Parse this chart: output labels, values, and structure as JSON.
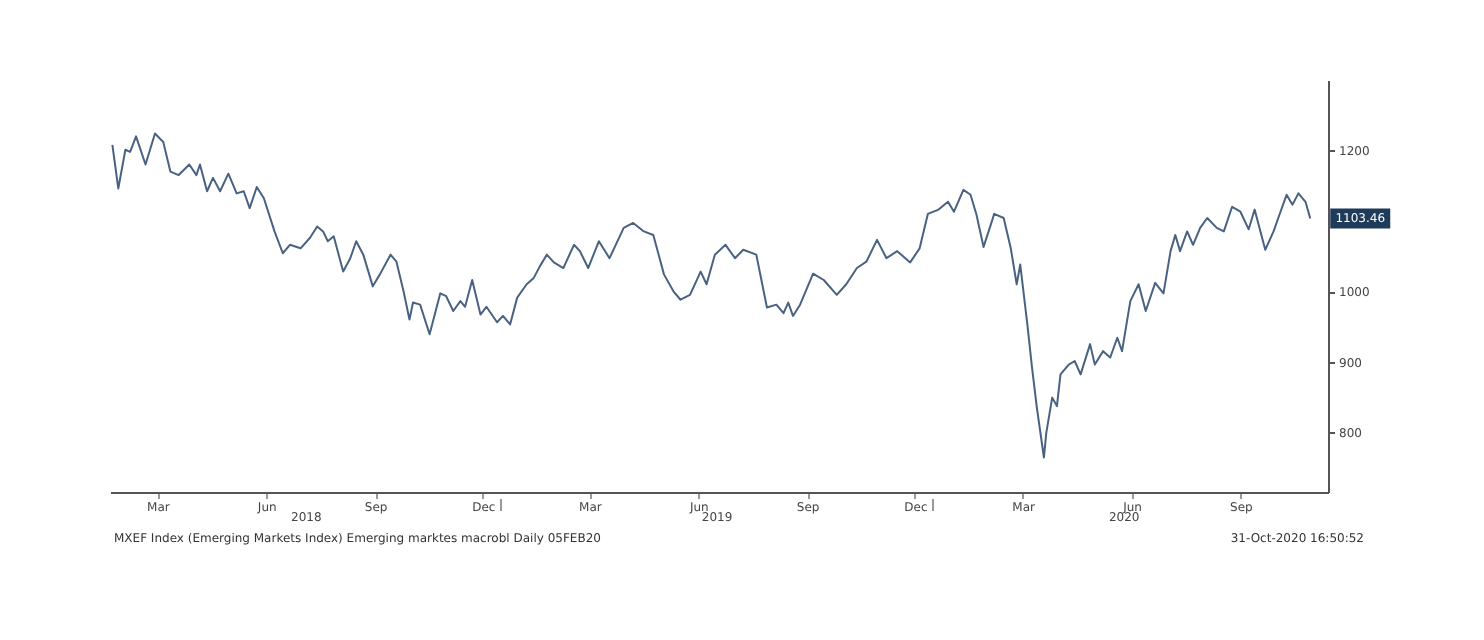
{
  "chart_data": {
    "type": "line",
    "x": [
      "2018-01-22",
      "2018-01-27",
      "2018-02-02",
      "2018-02-06",
      "2018-02-11",
      "2018-02-19",
      "2018-02-27",
      "2018-03-06",
      "2018-03-12",
      "2018-03-19",
      "2018-03-28",
      "2018-04-03",
      "2018-04-06",
      "2018-04-12",
      "2018-04-17",
      "2018-04-23",
      "2018-04-30",
      "2018-05-07",
      "2018-05-13",
      "2018-05-18",
      "2018-05-24",
      "2018-05-30",
      "2018-06-08",
      "2018-06-15",
      "2018-06-21",
      "2018-06-30",
      "2018-07-08",
      "2018-07-14",
      "2018-07-19",
      "2018-07-23",
      "2018-07-28",
      "2018-08-05",
      "2018-08-11",
      "2018-08-16",
      "2018-08-22",
      "2018-08-30",
      "2018-09-05",
      "2018-09-14",
      "2018-09-19",
      "2018-09-25",
      "2018-09-30",
      "2018-10-03",
      "2018-10-09",
      "2018-10-17",
      "2018-10-26",
      "2018-10-31",
      "2018-11-06",
      "2018-11-12",
      "2018-11-16",
      "2018-11-22",
      "2018-11-29",
      "2018-12-04",
      "2018-12-13",
      "2018-12-18",
      "2018-12-24",
      "2018-12-30",
      "2019-01-07",
      "2019-01-13",
      "2019-01-18",
      "2019-01-24",
      "2019-01-30",
      "2019-02-07",
      "2019-02-16",
      "2019-02-21",
      "2019-02-28",
      "2019-03-09",
      "2019-03-18",
      "2019-03-30",
      "2019-04-07",
      "2019-04-16",
      "2019-04-24",
      "2019-05-03",
      "2019-05-11",
      "2019-05-17",
      "2019-05-25",
      "2019-06-03",
      "2019-06-08",
      "2019-06-15",
      "2019-06-24",
      "2019-07-02",
      "2019-07-09",
      "2019-07-20",
      "2019-07-29",
      "2019-08-06",
      "2019-08-12",
      "2019-08-16",
      "2019-08-20",
      "2019-08-26",
      "2019-09-06",
      "2019-09-15",
      "2019-09-26",
      "2019-10-04",
      "2019-10-13",
      "2019-10-21",
      "2019-10-30",
      "2019-11-07",
      "2019-11-16",
      "2019-11-27",
      "2019-12-05",
      "2019-12-12",
      "2019-12-21",
      "2019-12-29",
      "2020-01-03",
      "2020-01-11",
      "2020-01-17",
      "2020-01-22",
      "2020-01-28",
      "2020-02-03",
      "2020-02-06",
      "2020-02-14",
      "2020-02-20",
      "2020-02-25",
      "2020-02-28",
      "2020-03-05",
      "2020-03-09",
      "2020-03-13",
      "2020-03-19",
      "2020-03-21",
      "2020-03-26",
      "2020-03-30",
      "2020-04-02",
      "2020-04-09",
      "2020-04-14",
      "2020-04-19",
      "2020-04-27",
      "2020-05-01",
      "2020-05-08",
      "2020-05-14",
      "2020-05-20",
      "2020-05-24",
      "2020-05-31",
      "2020-06-07",
      "2020-06-13",
      "2020-06-21",
      "2020-06-28",
      "2020-07-04",
      "2020-07-08",
      "2020-07-12",
      "2020-07-18",
      "2020-07-23",
      "2020-07-29",
      "2020-08-04",
      "2020-08-12",
      "2020-08-18",
      "2020-08-25",
      "2020-09-01",
      "2020-09-08",
      "2020-09-13",
      "2020-09-22",
      "2020-09-29",
      "2020-10-03",
      "2020-10-10",
      "2020-10-15",
      "2020-10-20",
      "2020-10-26",
      "2020-10-30"
    ],
    "series": [
      {
        "color": "#4a6281",
        "values": [
          1208,
          1146,
          1201,
          1198,
          1220,
          1180,
          1224,
          1212,
          1170,
          1165,
          1180,
          1165,
          1180,
          1142,
          1161,
          1142,
          1167,
          1139,
          1142,
          1118,
          1148,
          1132,
          1085,
          1054,
          1066,
          1061,
          1076,
          1092,
          1085,
          1071,
          1078,
          1028,
          1047,
          1071,
          1052,
          1007,
          1024,
          1052,
          1042,
          1000,
          960,
          984,
          981,
          939,
          997,
          993,
          972,
          986,
          978,
          1016,
          967,
          978,
          956,
          965,
          953,
          991,
          1010,
          1019,
          1035,
          1052,
          1041,
          1033,
          1066,
          1057,
          1033,
          1071,
          1047,
          1090,
          1097,
          1085,
          1080,
          1024,
          1000,
          988,
          995,
          1028,
          1010,
          1052,
          1066,
          1047,
          1059,
          1052,
          977,
          981,
          969,
          984,
          965,
          981,
          1025,
          1016,
          995,
          1010,
          1033,
          1042,
          1073,
          1047,
          1057,
          1041,
          1061,
          1110,
          1116,
          1127,
          1113,
          1144,
          1137,
          1109,
          1063,
          1094,
          1110,
          1104,
          1061,
          1010,
          1038,
          953,
          891,
          835,
          764,
          799,
          849,
          837,
          882,
          896,
          901,
          882,
          925,
          896,
          915,
          906,
          934,
          915,
          986,
          1010,
          972,
          1012,
          997,
          1057,
          1080,
          1057,
          1085,
          1066,
          1090,
          1104,
          1090,
          1085,
          1120,
          1113,
          1088,
          1116,
          1059,
          1085,
          1104,
          1137,
          1123,
          1139,
          1127,
          1103.46
        ]
      }
    ],
    "xlim": [
      "2018-01-20",
      "2020-11-14"
    ],
    "xticks": [
      {
        "value": "2018-03-01",
        "label": "Mar"
      },
      {
        "value": "2018-06-01",
        "label": "Jun"
      },
      {
        "value": "2018-09-01",
        "label": "Sep"
      },
      {
        "value": "2018-12-01",
        "label": "Dec"
      },
      {
        "value": "2019-03-01",
        "label": "Mar"
      },
      {
        "value": "2019-06-01",
        "label": "Jun"
      },
      {
        "value": "2019-09-01",
        "label": "Sep"
      },
      {
        "value": "2019-12-01",
        "label": "Dec"
      },
      {
        "value": "2020-03-01",
        "label": "Mar"
      },
      {
        "value": "2020-06-01",
        "label": "Jun"
      },
      {
        "value": "2020-09-01",
        "label": "Sep"
      }
    ],
    "x2lim": [
      "2018-01-20",
      "2020-11-14"
    ],
    "x2ticks": [
      {
        "value": "2018-07-04",
        "label": "2018"
      },
      {
        "value": "2019-06-16",
        "label": "2019"
      },
      {
        "value": "2020-05-25",
        "label": "2020"
      },
      {
        "value": "2018-12-16",
        "label": null
      },
      {
        "value": "2019-12-16",
        "label": null
      }
    ],
    "ylim": [
      715,
      1300
    ],
    "yticks": [
      800,
      900,
      1000,
      1200
    ],
    "grid": false,
    "line_style": "solid",
    "annotations": [
      {
        "text": "1103.46",
        "x": "2020-10-30",
        "y": 1103.46
      },
      "MXEF Index (Emerging Markets Index) Emerging marktes macrobl  Daily 05FEB20",
      "31-Oct-2020 16:50:52"
    ]
  }
}
